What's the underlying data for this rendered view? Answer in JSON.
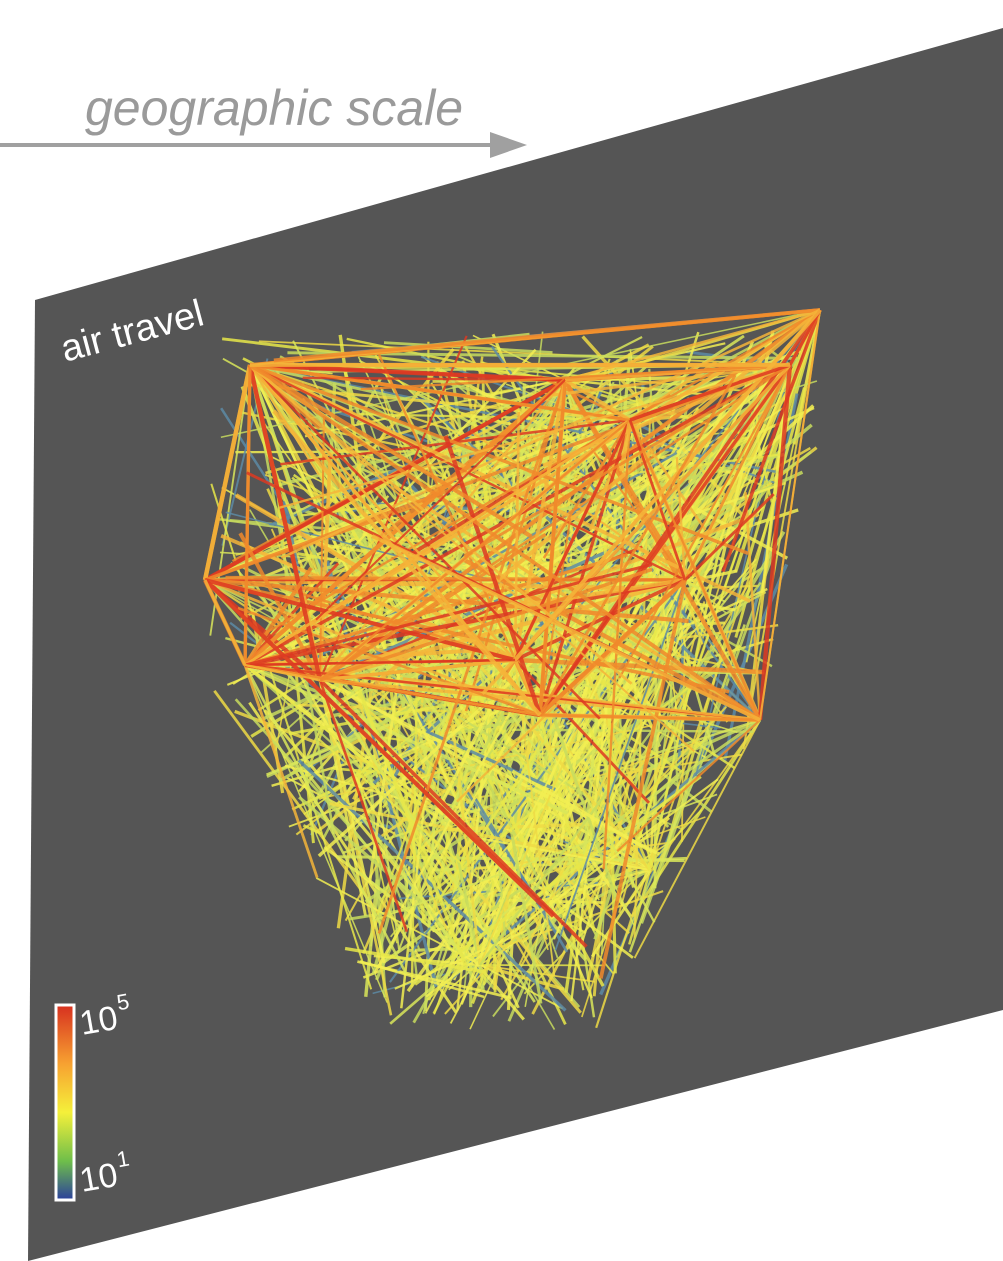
{
  "header": {
    "title": "geographic scale"
  },
  "panel": {
    "label": "air travel"
  },
  "colorbar": {
    "max": {
      "base": "10",
      "exponent": "5"
    },
    "min": {
      "base": "10",
      "exponent": "1"
    }
  }
}
